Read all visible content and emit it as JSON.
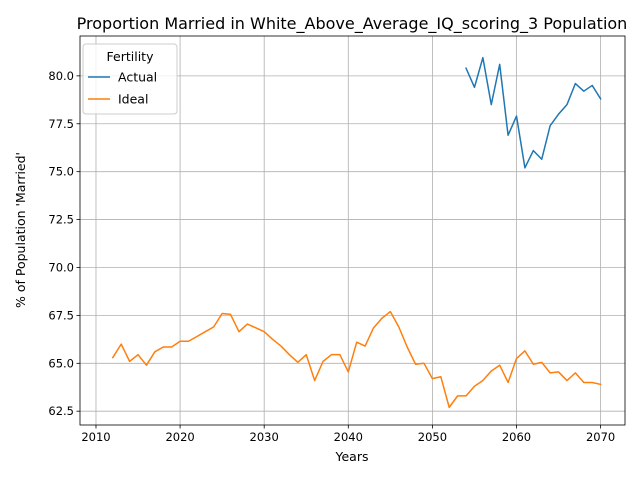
{
  "chart_data": {
    "type": "line",
    "title": "Proportion Married in White_Above_Average_IQ_scoring_3 Population",
    "xlabel": "Years",
    "ylabel": "% of Population 'Married'",
    "xlim": [
      2008.1,
      2072.9
    ],
    "ylim": [
      61.78,
      82.08
    ],
    "xticks": [
      2010,
      2020,
      2030,
      2040,
      2050,
      2060,
      2070
    ],
    "xtick_labels": [
      "2010",
      "2020",
      "2030",
      "2040",
      "2050",
      "2060",
      "2070"
    ],
    "yticks": [
      62.5,
      65.0,
      67.5,
      70.0,
      72.5,
      75.0,
      77.5,
      80.0
    ],
    "ytick_labels": [
      "62.5",
      "65.0",
      "67.5",
      "70.0",
      "72.5",
      "75.0",
      "77.5",
      "80.0"
    ],
    "grid": true,
    "legend": {
      "title": "Fertility",
      "placement": "top-left"
    },
    "series": [
      {
        "name": "Actual",
        "color": "#1f77b4",
        "x": [
          2054,
          2055,
          2056,
          2057,
          2058,
          2059,
          2060,
          2061,
          2062,
          2063,
          2064,
          2065,
          2066,
          2067,
          2068,
          2069,
          2070
        ],
        "y": [
          80.4,
          79.4,
          80.95,
          78.5,
          80.6,
          76.9,
          77.9,
          75.2,
          76.1,
          75.65,
          77.4,
          78.0,
          78.5,
          79.6,
          79.2,
          79.5,
          78.8
        ]
      },
      {
        "name": "Ideal",
        "color": "#ff7f0e",
        "x": [
          2012,
          2013,
          2014,
          2015,
          2016,
          2017,
          2018,
          2019,
          2020,
          2021,
          2022,
          2023,
          2024,
          2025,
          2026,
          2027,
          2028,
          2029,
          2030,
          2031,
          2032,
          2033,
          2034,
          2035,
          2036,
          2037,
          2038,
          2039,
          2040,
          2041,
          2042,
          2043,
          2044,
          2045,
          2046,
          2047,
          2048,
          2049,
          2050,
          2051,
          2052,
          2053,
          2054,
          2055,
          2056,
          2057,
          2058,
          2059,
          2060,
          2061,
          2062,
          2063,
          2064,
          2065,
          2066,
          2067,
          2068,
          2069,
          2070
        ],
        "y": [
          65.3,
          66.0,
          65.1,
          65.45,
          64.9,
          65.6,
          65.85,
          65.85,
          66.15,
          66.15,
          66.4,
          66.65,
          66.9,
          67.6,
          67.55,
          66.65,
          67.05,
          66.85,
          66.65,
          66.25,
          65.9,
          65.45,
          65.05,
          65.45,
          64.1,
          65.1,
          65.45,
          65.45,
          64.55,
          66.1,
          65.9,
          66.85,
          67.35,
          67.7,
          66.9,
          65.85,
          64.95,
          65.0,
          64.2,
          64.3,
          62.7,
          63.3,
          63.3,
          63.8,
          64.1,
          64.6,
          64.9,
          64.0,
          65.25,
          65.65,
          64.95,
          65.05,
          64.5,
          64.55,
          64.1,
          64.5,
          64.0,
          64.0,
          63.9
        ]
      }
    ]
  }
}
